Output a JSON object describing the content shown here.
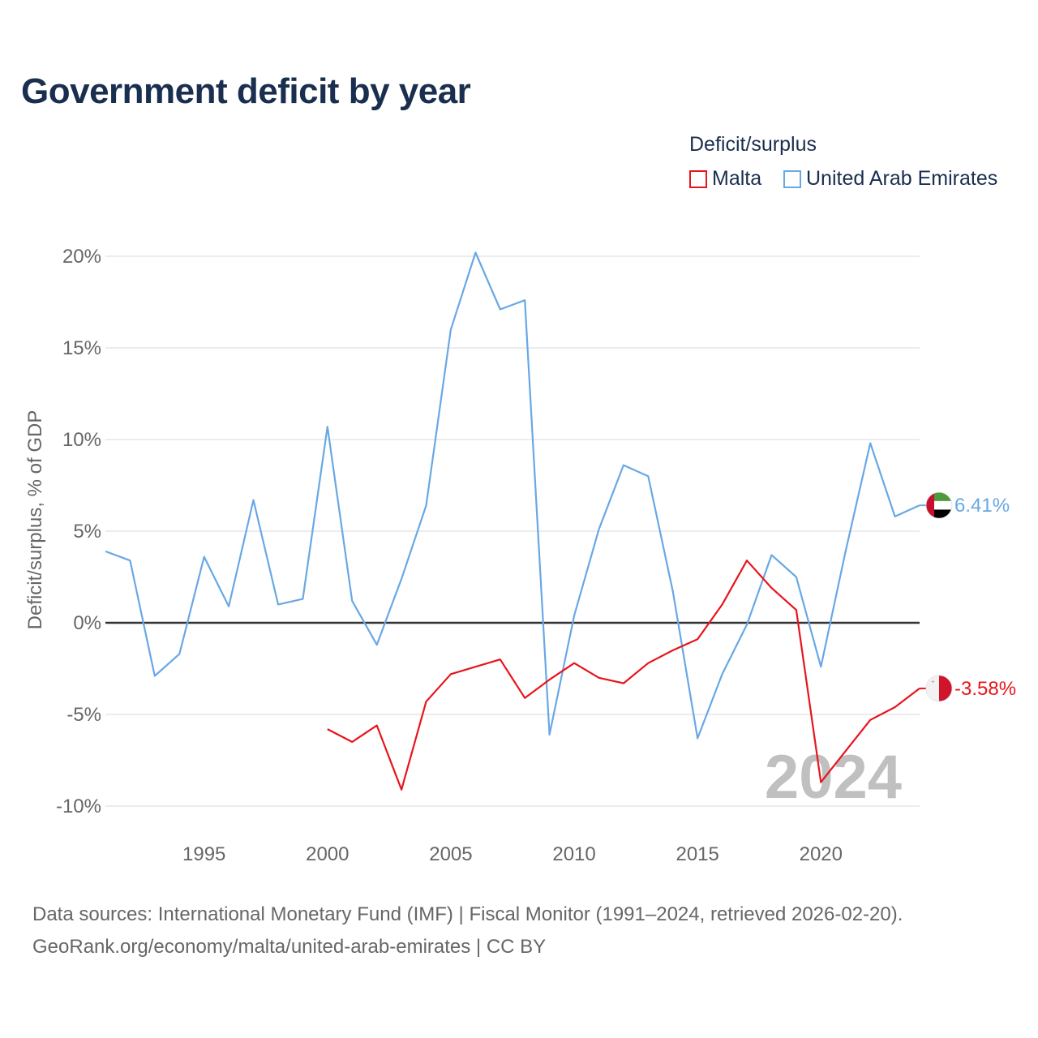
{
  "title": "Government deficit by year",
  "legend": {
    "title": "Deficit/surplus",
    "items": [
      {
        "label": "Malta",
        "color": "#e8141c"
      },
      {
        "label": "United Arab Emirates",
        "color": "#68a8e4"
      }
    ]
  },
  "chart_data": {
    "type": "line",
    "ylabel": "Deficit/surplus, % of GDP",
    "xlabel": "",
    "xlim": [
      1991,
      2024
    ],
    "ylim": [
      -10,
      20
    ],
    "yticks": [
      20,
      15,
      10,
      5,
      0,
      -5,
      -10
    ],
    "ytick_labels": [
      "20%",
      "15%",
      "10%",
      "5%",
      "0%",
      "-5%",
      "-10%"
    ],
    "xticks": [
      1995,
      2000,
      2005,
      2010,
      2015,
      2020
    ],
    "xtick_labels": [
      "1995",
      "2000",
      "2005",
      "2010",
      "2015",
      "2020"
    ],
    "year_label": "2024",
    "series": [
      {
        "name": "United Arab Emirates",
        "color": "#68a8e4",
        "end_label": "6.41%",
        "x": [
          1991,
          1992,
          1993,
          1994,
          1995,
          1996,
          1997,
          1998,
          1999,
          2000,
          2001,
          2002,
          2003,
          2004,
          2005,
          2006,
          2007,
          2008,
          2009,
          2010,
          2011,
          2012,
          2013,
          2014,
          2015,
          2016,
          2017,
          2018,
          2019,
          2020,
          2021,
          2022,
          2023,
          2024
        ],
        "values": [
          3.9,
          3.4,
          -2.9,
          -1.7,
          3.6,
          0.9,
          6.7,
          1.0,
          1.3,
          10.7,
          1.2,
          -1.2,
          2.4,
          6.4,
          16.0,
          20.2,
          17.1,
          17.6,
          -6.1,
          0.4,
          5.1,
          8.6,
          8.0,
          1.7,
          -6.3,
          -2.8,
          -0.1,
          3.7,
          2.5,
          -2.4,
          3.9,
          9.8,
          5.8,
          6.41
        ]
      },
      {
        "name": "Malta",
        "color": "#e8141c",
        "end_label": "-3.58%",
        "x": [
          2000,
          2001,
          2002,
          2003,
          2004,
          2005,
          2006,
          2007,
          2008,
          2009,
          2010,
          2011,
          2012,
          2013,
          2014,
          2015,
          2016,
          2017,
          2018,
          2019,
          2020,
          2021,
          2022,
          2023,
          2024
        ],
        "values": [
          -5.8,
          -6.5,
          -5.6,
          -9.1,
          -4.3,
          -2.8,
          -2.4,
          -2.0,
          -4.1,
          -3.1,
          -2.2,
          -3.0,
          -3.3,
          -2.2,
          -1.5,
          -0.9,
          1.0,
          3.4,
          1.9,
          0.7,
          -8.7,
          -7.0,
          -5.3,
          -4.6,
          -3.58
        ]
      }
    ]
  },
  "source": {
    "line1": "Data sources: International Monetary Fund (IMF) | Fiscal Monitor (1991–2024, retrieved 2026-02-20).",
    "line2": "GeoRank.org/economy/malta/united-arab-emirates | CC BY"
  },
  "colors": {
    "title": "#1a2e4f",
    "axis_text": "#666666",
    "grid": "#e6e6e6",
    "zero_line": "#333333",
    "year_label": "#c0c0c0"
  }
}
